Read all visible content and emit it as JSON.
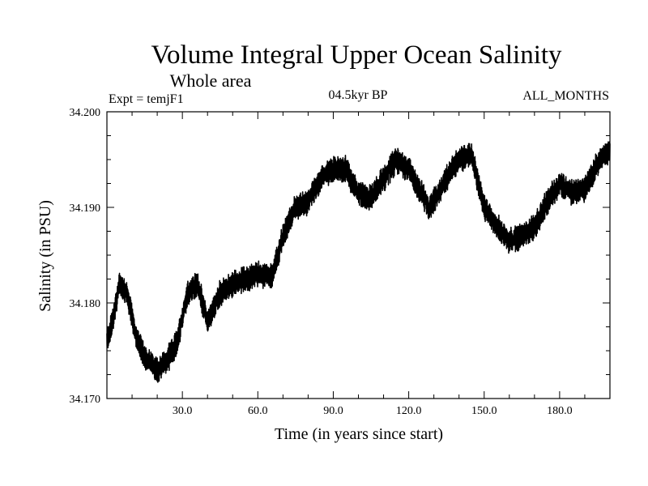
{
  "chart_data": {
    "type": "line",
    "title": "Volume Integral Upper Ocean Salinity",
    "subtitle": "Whole area",
    "experiment_label": "Expt = temjF1",
    "period_label": "04.5kyr BP",
    "months_label": "ALL_MONTHS",
    "xlabel": "Time (in years since start)",
    "ylabel": "Salinity (in PSU)",
    "xlim": [
      0,
      200
    ],
    "ylim": [
      34.17,
      34.2
    ],
    "x_ticks": [
      30,
      60,
      90,
      120,
      150,
      180
    ],
    "x_tick_labels": [
      "30.0",
      "60.0",
      "90.0",
      "120.0",
      "150.0",
      "180.0"
    ],
    "y_ticks": [
      34.17,
      34.18,
      34.19,
      34.2
    ],
    "y_tick_labels": [
      "34.170",
      "34.180",
      "34.190",
      "34.200"
    ],
    "series": [
      {
        "name": "Salinity",
        "sampling": "monthly",
        "noise_amplitude": 0.0012,
        "trend": {
          "x": [
            0,
            3,
            5,
            8,
            12,
            16,
            20,
            24,
            28,
            32,
            36,
            40,
            45,
            50,
            55,
            60,
            66,
            70,
            75,
            80,
            85,
            90,
            95,
            100,
            105,
            110,
            115,
            120,
            125,
            128,
            132,
            136,
            140,
            145,
            150,
            155,
            160,
            165,
            170,
            175,
            180,
            185,
            190,
            195,
            200
          ],
          "y": [
            34.176,
            34.179,
            34.182,
            34.181,
            34.176,
            34.174,
            34.173,
            34.174,
            34.176,
            34.181,
            34.182,
            34.178,
            34.181,
            34.182,
            34.1825,
            34.183,
            34.183,
            34.187,
            34.19,
            34.1905,
            34.193,
            34.194,
            34.194,
            34.1915,
            34.191,
            34.193,
            34.195,
            34.194,
            34.1915,
            34.19,
            34.1915,
            34.1935,
            34.195,
            34.1955,
            34.19,
            34.188,
            34.1865,
            34.187,
            34.188,
            34.1905,
            34.1925,
            34.1915,
            34.192,
            34.1945,
            34.196
          ]
        }
      }
    ]
  }
}
